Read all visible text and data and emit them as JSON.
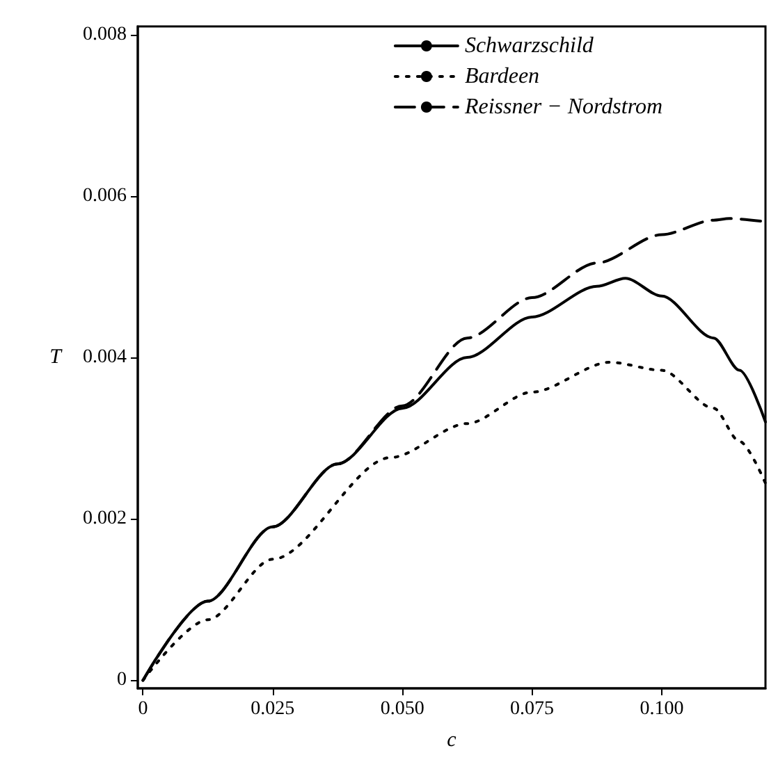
{
  "chart_data": {
    "type": "line",
    "xlabel": "c",
    "ylabel": "T",
    "xlim": [
      -0.001,
      0.12
    ],
    "ylim": [
      -0.0001,
      0.0081
    ],
    "xticks": [
      0,
      {
        "value": 0.025,
        "label": "0.025"
      },
      {
        "value": 0.05,
        "label": "0.050"
      },
      {
        "value": 0.075,
        "label": "0.075"
      },
      {
        "value": 0.1,
        "label": "0.100"
      }
    ],
    "yticks": [
      0,
      0.002,
      0.004,
      0.006,
      0.008
    ],
    "grid": false,
    "legend": "top right",
    "marker": "none",
    "series": [
      {
        "name": "Schwarzschild",
        "color": "#000000",
        "line_style": "solid",
        "x": [
          0,
          0.0125,
          0.025,
          0.0375,
          0.05,
          0.0625,
          0.075,
          0.0875,
          0.093,
          0.1,
          0.11,
          0.115,
          0.12
        ],
        "values": [
          0,
          0.00098,
          0.0019,
          0.00268,
          0.00337,
          0.004,
          0.0045,
          0.00488,
          0.00498,
          0.00476,
          0.00424,
          0.00384,
          0.0032
        ]
      },
      {
        "name": "Bardeen",
        "color": "#000000",
        "line_style": "dotted",
        "x": [
          0,
          0.0125,
          0.025,
          0.0478,
          0.0625,
          0.075,
          0.09,
          0.1,
          0.11,
          0.115,
          0.12
        ],
        "values": [
          0,
          0.00075,
          0.0015,
          0.00276,
          0.00318,
          0.00357,
          0.00394,
          0.00384,
          0.00337,
          0.00296,
          0.00244
        ]
      },
      {
        "name": "Reissner − Nordstrom",
        "color": "#000000",
        "line_style": "dashed",
        "x": [
          0,
          0.0125,
          0.025,
          0.0375,
          0.05,
          0.0625,
          0.075,
          0.0875,
          0.1,
          0.11,
          0.113,
          0.12
        ],
        "values": [
          0,
          0.00098,
          0.0019,
          0.00268,
          0.0034,
          0.00424,
          0.00474,
          0.00517,
          0.00552,
          0.0057,
          0.00572,
          0.00568
        ]
      }
    ]
  }
}
